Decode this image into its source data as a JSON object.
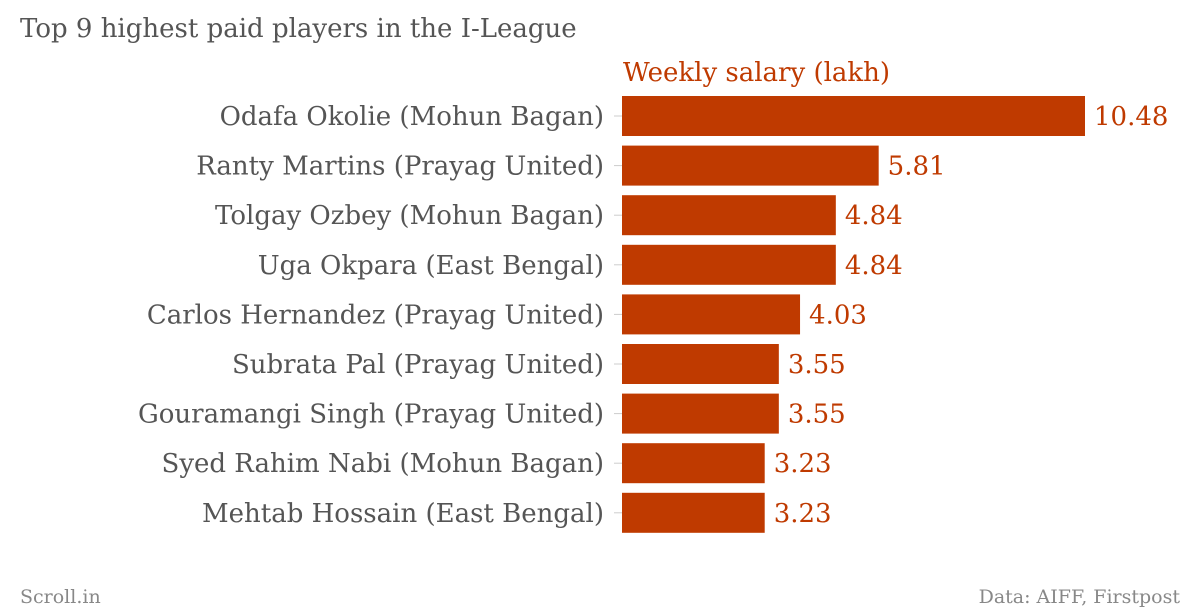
{
  "chart_data": {
    "type": "bar",
    "orientation": "horizontal",
    "title": "Top 9 highest paid players in the I-League",
    "series": [
      {
        "name": "Weekly salary (lakh)",
        "values": [
          10.48,
          5.81,
          4.84,
          4.84,
          4.03,
          3.55,
          3.55,
          3.23,
          3.23
        ]
      }
    ],
    "categories": [
      "Odafa Okolie (Mohun Bagan)",
      "Ranty Martins (Prayag United)",
      "Tolgay Ozbey (Mohun Bagan)",
      "Uga Okpara (East Bengal)",
      "Carlos Hernandez (Prayag United)",
      "Subrata Pal (Prayag United)",
      "Gouramangi Singh (Prayag United)",
      "Syed Rahim Nabi (Mohun Bagan)",
      "Mehtab Hossain (East Bengal)"
    ],
    "xlim": [
      0,
      10.48
    ],
    "grid": false,
    "bar_color": "#bf3a00"
  },
  "footer": {
    "brand": "Scroll.in",
    "source": "Data: AIFF, Firstpost"
  }
}
